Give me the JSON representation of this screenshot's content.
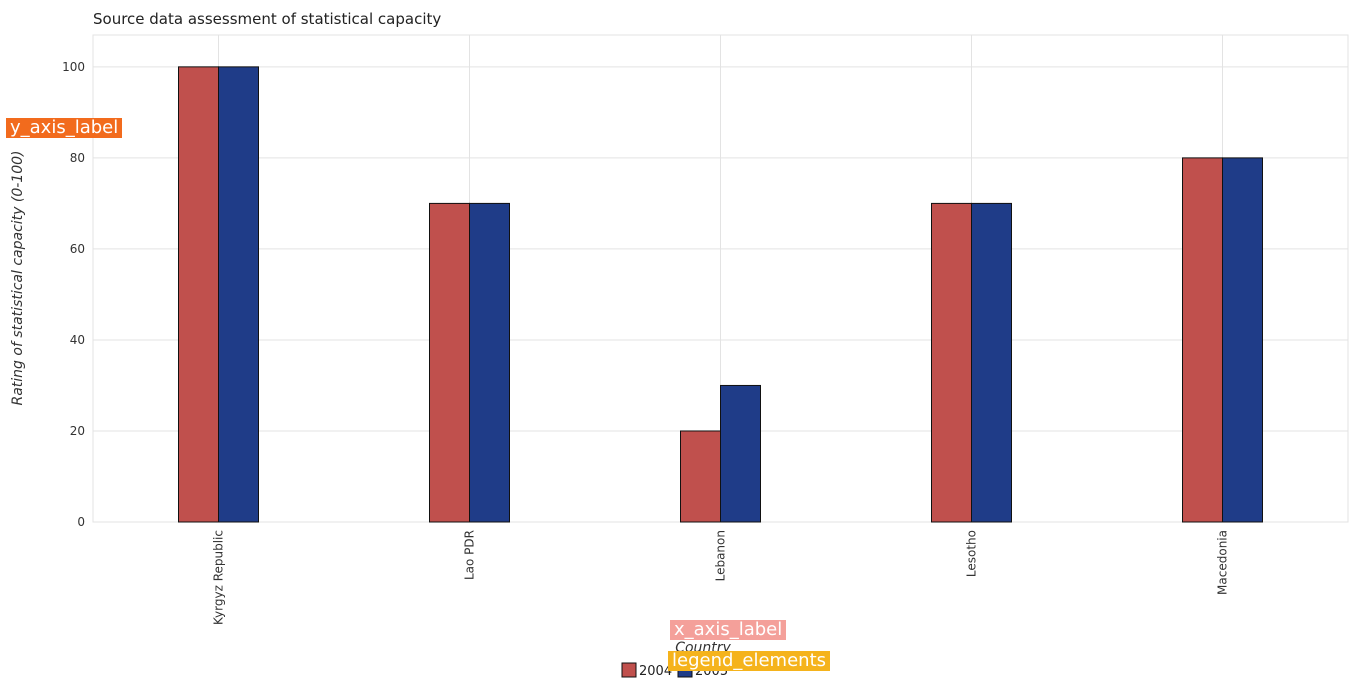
{
  "chart_data": {
    "type": "bar",
    "title": "Source data assessment of statistical capacity",
    "xlabel": "Country",
    "ylabel": "Rating of statistical capacity (0-100)",
    "categories": [
      "Kyrgyz Republic",
      "Lao PDR",
      "Lebanon",
      "Lesotho",
      "Macedonia"
    ],
    "series": [
      {
        "name": "2004",
        "values": [
          100,
          70,
          20,
          70,
          80
        ],
        "color": "#c0504d"
      },
      {
        "name": "2005",
        "values": [
          100,
          70,
          30,
          70,
          80
        ],
        "color": "#1f3c88"
      }
    ],
    "ylim": [
      0,
      107
    ],
    "yticks": [
      0,
      20,
      40,
      60,
      80,
      100
    ],
    "grid": true,
    "legend_position": "bottom-center"
  },
  "overlays": {
    "y_axis_tag": "y_axis_label",
    "x_axis_tag": "x_axis_label",
    "legend_tag": "legend_elements",
    "y_axis_color": "#f26b1d",
    "x_axis_color": "#f4a09a",
    "legend_color": "#f5b31c"
  }
}
